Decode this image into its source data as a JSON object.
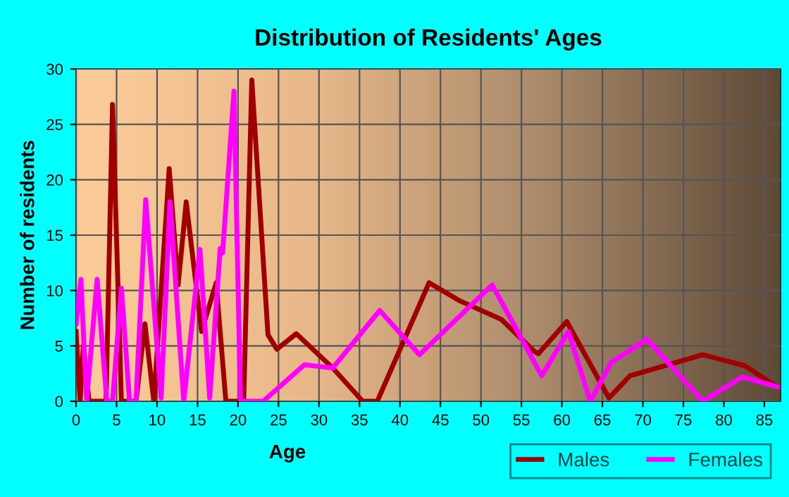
{
  "chart_data": {
    "type": "line",
    "title": "Distribution of Residents' Ages",
    "xlabel": "Age",
    "ylabel": "Number of residents",
    "xlim": [
      0,
      87
    ],
    "ylim": [
      0,
      30
    ],
    "xticks": [
      0,
      5,
      10,
      15,
      20,
      25,
      30,
      35,
      40,
      45,
      50,
      55,
      60,
      65,
      70,
      75,
      80,
      85
    ],
    "yticks": [
      0,
      5,
      10,
      15,
      20,
      25,
      30
    ],
    "grid": true,
    "legend": "bottom right",
    "marker": "none",
    "line_style": "solid",
    "series": [
      {
        "name": "Males",
        "color": "#a00000",
        "x": [
          0,
          0.5,
          0.9,
          1.6,
          3.7,
          4.5,
          5.6,
          7.4,
          8.5,
          9.6,
          11.5,
          12.6,
          13.6,
          15.5,
          17.3,
          18.5,
          20.7,
          21.7,
          23.7,
          24.8,
          27.2,
          31.7,
          35.4,
          37.2,
          43.6,
          47.3,
          52.5,
          56.6,
          57.1,
          60.6,
          65.8,
          68.4,
          77.4,
          82.6,
          86.6
        ],
        "values": [
          6.3,
          0,
          5,
          0,
          0,
          26.8,
          0,
          0,
          7,
          0,
          21,
          10.5,
          18,
          6.3,
          10.7,
          0,
          0,
          29,
          6,
          4.7,
          6.1,
          3,
          0,
          0,
          10.7,
          9.1,
          7.4,
          4.5,
          4.3,
          7.2,
          0.3,
          2.3,
          4.2,
          3.2,
          1.3
        ]
      },
      {
        "name": "Females",
        "color": "#ff00ff",
        "x": [
          0,
          0.6,
          1.3,
          2.6,
          3.8,
          4.5,
          5.6,
          6.6,
          7.4,
          8.6,
          10.5,
          11.6,
          13.3,
          15.3,
          16.5,
          17.8,
          18.1,
          19.5,
          20.3,
          23.1,
          28.2,
          31.7,
          37.5,
          42.4,
          51.4,
          54.9,
          57.5,
          60.8,
          63.5,
          66.1,
          70.5,
          77.4,
          82.3,
          86.6
        ],
        "values": [
          7,
          11,
          0,
          11,
          0,
          0,
          10.2,
          0,
          0,
          18.2,
          0.3,
          18,
          0,
          13.7,
          0.3,
          13.8,
          13.4,
          28,
          0,
          0,
          3.3,
          3,
          8.2,
          4.2,
          10.5,
          5.8,
          2.3,
          6.3,
          0,
          3.5,
          5.6,
          0,
          2.2,
          1.3
        ]
      }
    ]
  }
}
